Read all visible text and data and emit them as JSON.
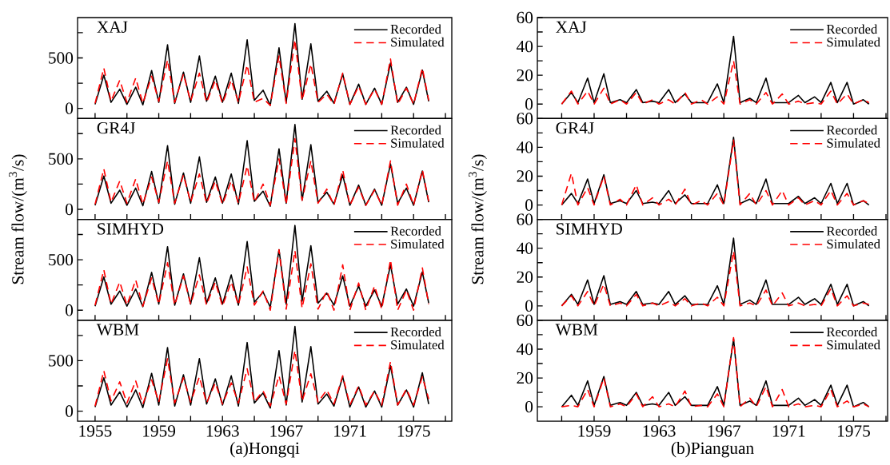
{
  "chart_data": [
    {
      "type": "line",
      "title": "XAJ",
      "xlim": [
        1953.9,
        1977.4
      ],
      "xticks": [
        1955,
        {
          "value": 1957,
          "label": null
        },
        1959,
        {
          "value": 1961,
          "label": null
        },
        1963,
        {
          "value": 1965,
          "label": null
        },
        1967,
        {
          "value": 1969,
          "label": null
        },
        1971,
        {
          "value": 1973,
          "label": null
        },
        1975,
        {
          "value": 1977,
          "label": null
        }
      ],
      "ylim": [
        -100,
        900
      ],
      "yticks": [
        0,
        {
          "value": 250,
          "label": null
        },
        500,
        {
          "value": 750,
          "label": null
        }
      ],
      "tick_labels": "y",
      "legend": "top right",
      "x": [
        1955.0,
        1955.55,
        1956.0,
        1956.55,
        1957.0,
        1957.55,
        1958.0,
        1958.55,
        1959.0,
        1959.55,
        1960.0,
        1960.55,
        1961.0,
        1961.55,
        1962.0,
        1962.55,
        1963.0,
        1963.55,
        1964.0,
        1964.55,
        1965.0,
        1965.55,
        1966.0,
        1966.55,
        1967.0,
        1967.55,
        1968.0,
        1968.55,
        1969.0,
        1969.55,
        1970.0,
        1970.55,
        1971.0,
        1971.55,
        1972.0,
        1972.55,
        1973.0,
        1973.55,
        1974.0,
        1974.55,
        1975.0,
        1975.55,
        1975.95
      ],
      "series": [
        {
          "name": "Recorded",
          "color": "#000000",
          "line_style": "solid",
          "values": [
            40,
            330,
            60,
            190,
            40,
            210,
            35,
            375,
            60,
            630,
            50,
            360,
            60,
            520,
            70,
            320,
            60,
            350,
            50,
            680,
            80,
            180,
            30,
            600,
            60,
            840,
            90,
            640,
            70,
            170,
            50,
            340,
            40,
            240,
            40,
            200,
            40,
            450,
            60,
            210,
            40,
            380,
            70
          ]
        },
        {
          "name": "Simulated",
          "color": "#ff0000",
          "line_style": "dashed",
          "values": [
            50,
            400,
            70,
            280,
            60,
            300,
            50,
            320,
            70,
            480,
            60,
            340,
            70,
            350,
            60,
            280,
            50,
            280,
            60,
            430,
            60,
            100,
            30,
            520,
            50,
            680,
            80,
            440,
            60,
            140,
            40,
            350,
            40,
            220,
            40,
            190,
            40,
            490,
            40,
            200,
            40,
            400,
            80
          ]
        }
      ]
    },
    {
      "type": "line",
      "title": "GR4J",
      "ylabel": "Stream flow/(m$^{3}$/s)",
      "xlim": [
        1953.9,
        1977.4
      ],
      "xticks": [
        1955,
        {
          "value": 1957,
          "label": null
        },
        1959,
        {
          "value": 1961,
          "label": null
        },
        1963,
        {
          "value": 1965,
          "label": null
        },
        1967,
        {
          "value": 1969,
          "label": null
        },
        1971,
        {
          "value": 1973,
          "label": null
        },
        1975,
        {
          "value": 1977,
          "label": null
        }
      ],
      "ylim": [
        -100,
        900
      ],
      "yticks": [
        0,
        {
          "value": 250,
          "label": null
        },
        500,
        {
          "value": 750,
          "label": null
        }
      ],
      "tick_labels": "y",
      "legend": "top right",
      "x": [
        1955.0,
        1955.55,
        1956.0,
        1956.55,
        1957.0,
        1957.55,
        1958.0,
        1958.55,
        1959.0,
        1959.55,
        1960.0,
        1960.55,
        1961.0,
        1961.55,
        1962.0,
        1962.55,
        1963.0,
        1963.55,
        1964.0,
        1964.55,
        1965.0,
        1965.55,
        1966.0,
        1966.55,
        1967.0,
        1967.55,
        1968.0,
        1968.55,
        1969.0,
        1969.55,
        1970.0,
        1970.55,
        1971.0,
        1971.55,
        1972.0,
        1972.55,
        1973.0,
        1973.55,
        1974.0,
        1974.55,
        1975.0,
        1975.55,
        1975.95
      ],
      "series": [
        {
          "name": "Recorded",
          "color": "#000000",
          "line_style": "solid",
          "values": [
            40,
            330,
            60,
            190,
            40,
            210,
            35,
            375,
            60,
            630,
            50,
            360,
            60,
            520,
            70,
            320,
            60,
            350,
            50,
            680,
            80,
            180,
            30,
            600,
            60,
            840,
            90,
            640,
            70,
            170,
            50,
            340,
            40,
            240,
            40,
            200,
            40,
            450,
            60,
            210,
            40,
            380,
            70
          ]
        },
        {
          "name": "Simulated",
          "color": "#ff0000",
          "line_style": "dashed",
          "values": [
            50,
            400,
            70,
            280,
            60,
            300,
            50,
            320,
            70,
            480,
            60,
            340,
            70,
            350,
            60,
            280,
            50,
            280,
            60,
            430,
            70,
            250,
            40,
            500,
            50,
            700,
            90,
            480,
            60,
            200,
            40,
            390,
            40,
            220,
            40,
            190,
            40,
            480,
            40,
            250,
            40,
            390,
            80
          ]
        }
      ]
    },
    {
      "type": "line",
      "title": "SIMHYD",
      "xlim": [
        1953.9,
        1977.4
      ],
      "xticks": [
        1955,
        {
          "value": 1957,
          "label": null
        },
        1959,
        {
          "value": 1961,
          "label": null
        },
        1963,
        {
          "value": 1965,
          "label": null
        },
        1967,
        {
          "value": 1969,
          "label": null
        },
        1971,
        {
          "value": 1973,
          "label": null
        },
        1975,
        {
          "value": 1977,
          "label": null
        }
      ],
      "ylim": [
        -100,
        900
      ],
      "yticks": [
        0,
        {
          "value": 250,
          "label": null
        },
        500,
        {
          "value": 750,
          "label": null
        }
      ],
      "tick_labels": "y",
      "legend": "top right",
      "x": [
        1955.0,
        1955.55,
        1956.0,
        1956.55,
        1957.0,
        1957.55,
        1958.0,
        1958.55,
        1959.0,
        1959.55,
        1960.0,
        1960.55,
        1961.0,
        1961.55,
        1962.0,
        1962.55,
        1963.0,
        1963.55,
        1964.0,
        1964.55,
        1965.0,
        1965.55,
        1966.0,
        1966.55,
        1967.0,
        1967.55,
        1968.0,
        1968.55,
        1969.0,
        1969.55,
        1970.0,
        1970.55,
        1971.0,
        1971.55,
        1972.0,
        1972.55,
        1973.0,
        1973.55,
        1974.0,
        1974.55,
        1975.0,
        1975.55,
        1975.95
      ],
      "series": [
        {
          "name": "Recorded",
          "color": "#000000",
          "line_style": "solid",
          "values": [
            40,
            330,
            60,
            190,
            40,
            210,
            35,
            375,
            60,
            630,
            50,
            360,
            60,
            520,
            70,
            320,
            60,
            350,
            50,
            680,
            80,
            180,
            30,
            600,
            60,
            840,
            90,
            640,
            70,
            170,
            50,
            340,
            40,
            240,
            40,
            200,
            40,
            450,
            60,
            210,
            40,
            380,
            70
          ]
        },
        {
          "name": "Simulated",
          "color": "#ff0000",
          "line_style": "dashed",
          "values": [
            50,
            400,
            60,
            280,
            50,
            300,
            40,
            320,
            60,
            470,
            50,
            340,
            60,
            350,
            50,
            280,
            40,
            280,
            50,
            430,
            50,
            190,
            0,
            600,
            10,
            590,
            20,
            460,
            10,
            190,
            0,
            450,
            0,
            270,
            0,
            240,
            10,
            500,
            0,
            200,
            0,
            420,
            60
          ]
        }
      ]
    },
    {
      "type": "line",
      "title": "WBM",
      "xlabel": "(a)Hongqi",
      "xlim": [
        1953.9,
        1977.4
      ],
      "xticks": [
        1955,
        {
          "value": 1957,
          "label": null
        },
        1959,
        {
          "value": 1961,
          "label": null
        },
        1963,
        {
          "value": 1965,
          "label": null
        },
        1967,
        {
          "value": 1969,
          "label": null
        },
        1971,
        {
          "value": 1973,
          "label": null
        },
        1975,
        {
          "value": 1977,
          "label": null
        }
      ],
      "ylim": [
        -100,
        900
      ],
      "yticks": [
        0,
        {
          "value": 250,
          "label": null
        },
        500,
        {
          "value": 750,
          "label": null
        }
      ],
      "legend": "top right",
      "x": [
        1955.0,
        1955.55,
        1956.0,
        1956.55,
        1957.0,
        1957.55,
        1958.0,
        1958.55,
        1959.0,
        1959.55,
        1960.0,
        1960.55,
        1961.0,
        1961.55,
        1962.0,
        1962.55,
        1963.0,
        1963.55,
        1964.0,
        1964.55,
        1965.0,
        1965.55,
        1966.0,
        1966.55,
        1967.0,
        1967.55,
        1968.0,
        1968.55,
        1969.0,
        1969.55,
        1970.0,
        1970.55,
        1971.0,
        1971.55,
        1972.0,
        1972.55,
        1973.0,
        1973.55,
        1974.0,
        1974.55,
        1975.0,
        1975.55,
        1975.95
      ],
      "series": [
        {
          "name": "Recorded",
          "color": "#000000",
          "line_style": "solid",
          "values": [
            40,
            330,
            60,
            190,
            40,
            210,
            35,
            375,
            60,
            630,
            50,
            360,
            60,
            520,
            70,
            320,
            60,
            350,
            50,
            680,
            80,
            180,
            30,
            600,
            60,
            840,
            90,
            640,
            70,
            170,
            50,
            340,
            40,
            240,
            40,
            200,
            40,
            450,
            60,
            210,
            40,
            380,
            70
          ]
        },
        {
          "name": "Simulated",
          "color": "#ff0000",
          "line_style": "dashed",
          "values": [
            50,
            400,
            100,
            290,
            80,
            300,
            70,
            310,
            90,
            520,
            80,
            330,
            90,
            340,
            80,
            280,
            70,
            280,
            80,
            420,
            90,
            200,
            50,
            350,
            70,
            600,
            100,
            370,
            90,
            210,
            70,
            350,
            60,
            250,
            60,
            200,
            60,
            490,
            60,
            220,
            60,
            340,
            120
          ]
        }
      ]
    },
    {
      "type": "line",
      "title": "XAJ",
      "xlim": [
        1955.5,
        1977.1
      ],
      "xticks": [
        {
          "value": 1957,
          "label": null
        },
        1959,
        {
          "value": 1961,
          "label": null
        },
        1963,
        {
          "value": 1965,
          "label": null
        },
        1967,
        {
          "value": 1969,
          "label": null
        },
        1971,
        {
          "value": 1973,
          "label": null
        },
        1975,
        {
          "value": 1977,
          "label": null
        }
      ],
      "ylim": [
        -10,
        60
      ],
      "yticks": [
        0,
        {
          "value": 10,
          "label": null
        },
        20,
        {
          "value": 30,
          "label": null
        },
        40,
        {
          "value": 50,
          "label": null
        },
        60
      ],
      "tick_labels": "y",
      "legend": "top right",
      "x": [
        1957.0,
        1957.6,
        1958.0,
        1958.6,
        1959.0,
        1959.6,
        1960.0,
        1960.6,
        1961.0,
        1961.6,
        1962.0,
        1962.6,
        1963.0,
        1963.6,
        1964.0,
        1964.6,
        1965.0,
        1965.6,
        1966.0,
        1966.6,
        1967.0,
        1967.6,
        1968.0,
        1968.6,
        1969.0,
        1969.6,
        1970.0,
        1970.6,
        1971.0,
        1971.6,
        1972.0,
        1972.6,
        1973.0,
        1973.6,
        1974.0,
        1974.6,
        1975.0,
        1975.6,
        1975.95
      ],
      "series": [
        {
          "name": "Recorded",
          "color": "#000000",
          "line_style": "solid",
          "values": [
            0,
            8,
            1,
            18,
            1,
            21,
            1,
            3,
            1,
            10,
            1,
            2,
            1,
            10,
            1,
            7,
            1,
            1,
            1,
            14,
            1,
            47,
            1,
            4,
            1,
            18,
            1,
            1,
            1,
            6,
            1,
            5,
            1,
            15,
            1,
            15,
            0,
            3,
            0
          ]
        },
        {
          "name": "Simulated",
          "color": "#ff0000",
          "line_style": "dashed",
          "values": [
            0,
            9,
            0,
            9,
            0,
            11,
            0,
            3,
            0,
            8,
            0,
            3,
            0,
            3,
            0,
            8,
            0,
            3,
            0,
            5,
            0,
            30,
            0,
            3,
            0,
            8,
            0,
            7,
            0,
            2,
            0,
            1,
            0,
            9,
            0,
            7,
            0,
            3,
            1
          ]
        }
      ]
    },
    {
      "type": "line",
      "title": "GR4J",
      "ylabel": "Stream flow/(m$^{3}$/s)",
      "xlim": [
        1955.5,
        1977.1
      ],
      "xticks": [
        {
          "value": 1957,
          "label": null
        },
        1959,
        {
          "value": 1961,
          "label": null
        },
        1963,
        {
          "value": 1965,
          "label": null
        },
        1967,
        {
          "value": 1969,
          "label": null
        },
        1971,
        {
          "value": 1973,
          "label": null
        },
        1975,
        {
          "value": 1977,
          "label": null
        }
      ],
      "ylim": [
        -10,
        60
      ],
      "yticks": [
        0,
        {
          "value": 10,
          "label": null
        },
        20,
        {
          "value": 30,
          "label": null
        },
        40,
        {
          "value": 50,
          "label": null
        },
        60
      ],
      "tick_labels": "y",
      "legend": "top right",
      "x": [
        1957.0,
        1957.6,
        1958.0,
        1958.6,
        1959.0,
        1959.6,
        1960.0,
        1960.6,
        1961.0,
        1961.6,
        1962.0,
        1962.6,
        1963.0,
        1963.6,
        1964.0,
        1964.6,
        1965.0,
        1965.6,
        1966.0,
        1966.6,
        1967.0,
        1967.6,
        1968.0,
        1968.6,
        1969.0,
        1969.6,
        1970.0,
        1970.6,
        1971.0,
        1971.6,
        1972.0,
        1972.6,
        1973.0,
        1973.6,
        1974.0,
        1974.6,
        1975.0,
        1975.6,
        1975.95
      ],
      "series": [
        {
          "name": "Recorded",
          "color": "#000000",
          "line_style": "solid",
          "values": [
            0,
            8,
            1,
            18,
            1,
            21,
            1,
            3,
            1,
            10,
            1,
            2,
            1,
            10,
            1,
            7,
            1,
            1,
            1,
            14,
            1,
            47,
            1,
            4,
            1,
            18,
            1,
            1,
            1,
            6,
            1,
            5,
            1,
            15,
            1,
            15,
            0,
            3,
            0
          ]
        },
        {
          "name": "Simulated",
          "color": "#ff0000",
          "line_style": "dashed",
          "values": [
            0,
            22,
            0,
            12,
            0,
            20,
            0,
            4,
            0,
            14,
            0,
            5,
            0,
            4,
            0,
            11,
            0,
            3,
            0,
            8,
            0,
            45,
            0,
            8,
            0,
            10,
            0,
            10,
            0,
            5,
            0,
            3,
            0,
            10,
            0,
            8,
            0,
            3,
            1
          ]
        }
      ]
    },
    {
      "type": "line",
      "title": "SIMHYD",
      "xlim": [
        1955.5,
        1977.1
      ],
      "xticks": [
        {
          "value": 1957,
          "label": null
        },
        1959,
        {
          "value": 1961,
          "label": null
        },
        1963,
        {
          "value": 1965,
          "label": null
        },
        1967,
        {
          "value": 1969,
          "label": null
        },
        1971,
        {
          "value": 1973,
          "label": null
        },
        1975,
        {
          "value": 1977,
          "label": null
        }
      ],
      "ylim": [
        -10,
        60
      ],
      "yticks": [
        0,
        {
          "value": 10,
          "label": null
        },
        20,
        {
          "value": 30,
          "label": null
        },
        40,
        {
          "value": 50,
          "label": null
        },
        60
      ],
      "tick_labels": "y",
      "legend": "top right",
      "x": [
        1957.0,
        1957.6,
        1958.0,
        1958.6,
        1959.0,
        1959.6,
        1960.0,
        1960.6,
        1961.0,
        1961.6,
        1962.0,
        1962.6,
        1963.0,
        1963.6,
        1964.0,
        1964.6,
        1965.0,
        1965.6,
        1966.0,
        1966.6,
        1967.0,
        1967.6,
        1968.0,
        1968.6,
        1969.0,
        1969.6,
        1970.0,
        1970.6,
        1971.0,
        1971.6,
        1972.0,
        1972.6,
        1973.0,
        1973.6,
        1974.0,
        1974.6,
        1975.0,
        1975.6,
        1975.95
      ],
      "series": [
        {
          "name": "Recorded",
          "color": "#000000",
          "line_style": "solid",
          "values": [
            0,
            8,
            1,
            18,
            1,
            21,
            1,
            3,
            1,
            10,
            1,
            2,
            1,
            10,
            1,
            7,
            1,
            1,
            1,
            14,
            1,
            47,
            1,
            4,
            1,
            18,
            1,
            1,
            1,
            6,
            1,
            5,
            1,
            15,
            1,
            15,
            0,
            3,
            0
          ]
        },
        {
          "name": "Simulated",
          "color": "#ff0000",
          "line_style": "dashed",
          "values": [
            0,
            7,
            0,
            10,
            0,
            15,
            0,
            2,
            0,
            8,
            0,
            2,
            0,
            3,
            0,
            5,
            0,
            2,
            0,
            6,
            0,
            38,
            0,
            2,
            0,
            11,
            0,
            9,
            0,
            2,
            0,
            1,
            0,
            12,
            0,
            7,
            0,
            2,
            1
          ]
        }
      ]
    },
    {
      "type": "line",
      "title": "WBM",
      "xlabel": "(b)Pianguan",
      "xlim": [
        1955.5,
        1977.1
      ],
      "xticks": [
        {
          "value": 1957,
          "label": null
        },
        1959,
        {
          "value": 1961,
          "label": null
        },
        1963,
        {
          "value": 1965,
          "label": null
        },
        1967,
        {
          "value": 1969,
          "label": null
        },
        1971,
        {
          "value": 1973,
          "label": null
        },
        1975,
        {
          "value": 1977,
          "label": null
        }
      ],
      "ylim": [
        -10,
        60
      ],
      "yticks": [
        0,
        {
          "value": 10,
          "label": null
        },
        20,
        {
          "value": 30,
          "label": null
        },
        40,
        {
          "value": 50,
          "label": null
        },
        60
      ],
      "legend": "top right",
      "x": [
        1957.0,
        1957.6,
        1958.0,
        1958.6,
        1959.0,
        1959.6,
        1960.0,
        1960.6,
        1961.0,
        1961.6,
        1962.0,
        1962.6,
        1963.0,
        1963.6,
        1964.0,
        1964.6,
        1965.0,
        1965.6,
        1966.0,
        1966.6,
        1967.0,
        1967.6,
        1968.0,
        1968.6,
        1969.0,
        1969.6,
        1970.0,
        1970.6,
        1971.0,
        1971.6,
        1972.0,
        1972.6,
        1973.0,
        1973.6,
        1974.0,
        1974.6,
        1975.0,
        1975.6,
        1975.95
      ],
      "series": [
        {
          "name": "Recorded",
          "color": "#000000",
          "line_style": "solid",
          "values": [
            0,
            8,
            1,
            18,
            1,
            21,
            1,
            3,
            1,
            10,
            1,
            2,
            1,
            10,
            1,
            7,
            1,
            1,
            1,
            14,
            1,
            47,
            1,
            4,
            1,
            18,
            1,
            1,
            1,
            6,
            1,
            5,
            1,
            15,
            1,
            15,
            0,
            3,
            0
          ]
        },
        {
          "name": "Simulated",
          "color": "#ff0000",
          "line_style": "dashed",
          "values": [
            0,
            1,
            0,
            12,
            0,
            20,
            0,
            2,
            0,
            9,
            0,
            7,
            0,
            2,
            0,
            11,
            0,
            1,
            0,
            9,
            0,
            48,
            0,
            6,
            0,
            14,
            0,
            12,
            0,
            2,
            0,
            1,
            0,
            12,
            0,
            4,
            0,
            2,
            0
          ]
        }
      ]
    }
  ]
}
